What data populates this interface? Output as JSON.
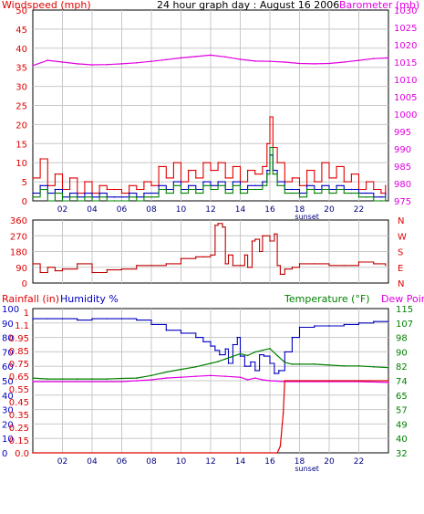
{
  "colors": {
    "red": "#e00000",
    "blue": "#0000c0",
    "green": "#008000",
    "magenta": "#e000e0",
    "darkred": "#c00000",
    "grid": "#c8c8c8"
  },
  "chart_data": [
    {
      "type": "line",
      "title": "24 hour graph day : August 16 2006",
      "ylabel": "Windspeed (mph)",
      "y2label": "Barometer (mb)",
      "ylim": [
        0,
        50
      ],
      "y2lim": [
        975,
        1030
      ],
      "yticks": [
        "50",
        "45",
        "40",
        "35",
        "30",
        "25",
        "20",
        "15",
        "10",
        "5",
        "0"
      ],
      "y2ticks": [
        "1030",
        "1025",
        "1020",
        "1015",
        "1010",
        "1005",
        "1000",
        "995",
        "990",
        "985",
        "980",
        "975"
      ],
      "xlim": [
        0,
        24
      ],
      "xticks": [
        "02",
        "04",
        "06",
        "08",
        "10",
        "12",
        "14",
        "16",
        "18",
        "20",
        "22"
      ],
      "xnote": "sunset",
      "series": [
        {
          "key": "gust",
          "color": "red",
          "axis": "y",
          "x": [
            0,
            0.5,
            1,
            1.5,
            2,
            2.5,
            3,
            3.5,
            4,
            4.5,
            5,
            5.5,
            6,
            6.5,
            7,
            7.5,
            8,
            8.5,
            9,
            9.5,
            10,
            10.5,
            11,
            11.5,
            12,
            12.5,
            13,
            13.5,
            14,
            14.5,
            15,
            15.5,
            15.8,
            16,
            16.2,
            16.5,
            17,
            17.5,
            18,
            18.5,
            19,
            19.5,
            20,
            20.5,
            21,
            21.5,
            22,
            22.5,
            23,
            23.5,
            23.8
          ],
          "y": [
            6,
            11,
            4,
            7,
            3,
            6,
            2,
            5,
            2,
            4,
            3,
            3,
            2,
            4,
            3,
            5,
            4,
            9,
            6,
            10,
            5,
            8,
            6,
            10,
            8,
            10,
            6,
            9,
            5,
            8,
            7,
            9,
            15,
            22,
            14,
            10,
            5,
            6,
            4,
            8,
            5,
            10,
            6,
            9,
            5,
            7,
            3,
            5,
            3,
            2,
            4
          ]
        },
        {
          "key": "avg",
          "color": "blue",
          "axis": "y",
          "x": [
            0,
            0.5,
            1,
            1.5,
            2,
            2.5,
            3,
            3.5,
            4,
            4.5,
            5,
            5.5,
            6,
            6.5,
            7,
            7.5,
            8,
            8.5,
            9,
            9.5,
            10,
            10.5,
            11,
            11.5,
            12,
            12.5,
            13,
            13.5,
            14,
            14.5,
            15,
            15.5,
            15.8,
            16,
            16.2,
            16.5,
            17,
            17.5,
            18,
            18.5,
            19,
            19.5,
            20,
            20.5,
            21,
            21.5,
            22,
            22.5,
            23,
            23.5,
            23.8
          ],
          "y": [
            2,
            4,
            2,
            3,
            1,
            2,
            1,
            2,
            1,
            2,
            1,
            1,
            1,
            2,
            1,
            2,
            2,
            4,
            3,
            5,
            3,
            4,
            3,
            5,
            4,
            5,
            3,
            5,
            3,
            4,
            4,
            5,
            8,
            12,
            8,
            5,
            3,
            3,
            2,
            4,
            3,
            4,
            3,
            4,
            3,
            3,
            2,
            2,
            1,
            1,
            2
          ]
        },
        {
          "key": "wind",
          "color": "green",
          "axis": "y",
          "x": [
            0,
            0.5,
            1,
            1.5,
            2,
            2.5,
            3,
            3.5,
            4,
            4.5,
            5,
            5.5,
            6,
            6.5,
            7,
            7.5,
            8,
            8.5,
            9,
            9.5,
            10,
            10.5,
            11,
            11.5,
            12,
            12.5,
            13,
            13.5,
            14,
            14.5,
            15,
            15.5,
            15.8,
            16,
            16.2,
            16.5,
            17,
            17.5,
            18,
            18.5,
            19,
            19.5,
            20,
            20.5,
            21,
            21.5,
            22,
            22.5,
            23,
            23.5,
            23.8
          ],
          "y": [
            1,
            3,
            0,
            2,
            0,
            1,
            0,
            1,
            0,
            1,
            0,
            0,
            0,
            1,
            0,
            1,
            1,
            3,
            2,
            4,
            2,
            3,
            2,
            4,
            3,
            4,
            2,
            4,
            2,
            3,
            3,
            4,
            7,
            14,
            7,
            4,
            2,
            2,
            1,
            3,
            2,
            3,
            2,
            3,
            2,
            2,
            1,
            1,
            0,
            0,
            1
          ]
        },
        {
          "key": "baro",
          "color": "magenta",
          "axis": "y2",
          "x": [
            0,
            1,
            2,
            3,
            4,
            5,
            6,
            7,
            8,
            9,
            10,
            11,
            12,
            13,
            14,
            15,
            16,
            17,
            18,
            19,
            20,
            21,
            22,
            23,
            24
          ],
          "y": [
            1014,
            1015.5,
            1015,
            1014.5,
            1014.2,
            1014.3,
            1014.5,
            1014.8,
            1015.2,
            1015.7,
            1016.2,
            1016.6,
            1017,
            1016.5,
            1015.8,
            1015.3,
            1015.2,
            1015,
            1014.6,
            1014.5,
            1014.6,
            1015,
            1015.5,
            1016,
            1016.2
          ]
        }
      ]
    },
    {
      "type": "line",
      "yticks": [
        "360",
        "270",
        "180",
        "90",
        "0"
      ],
      "ylim": [
        0,
        360
      ],
      "y2ticks": [
        "N",
        "W",
        "S",
        "E",
        "N"
      ],
      "xlim": [
        0,
        24
      ],
      "series": [
        {
          "key": "dir",
          "color": "darkred",
          "axis": "y",
          "x": [
            0,
            0.5,
            1,
            1.5,
            2,
            3,
            4,
            5,
            6,
            7,
            8,
            9,
            10,
            11,
            11.5,
            12,
            12.3,
            12.5,
            12.8,
            13,
            13.2,
            13.5,
            14,
            14.3,
            14.5,
            14.8,
            15,
            15.3,
            15.5,
            16,
            16.3,
            16.5,
            16.7,
            17,
            17.5,
            18,
            19,
            20,
            21,
            22,
            23,
            23.8
          ],
          "y": [
            110,
            60,
            90,
            70,
            80,
            110,
            60,
            75,
            80,
            100,
            100,
            110,
            140,
            150,
            150,
            160,
            330,
            340,
            320,
            110,
            160,
            100,
            100,
            160,
            90,
            240,
            250,
            180,
            270,
            240,
            280,
            100,
            50,
            80,
            90,
            110,
            110,
            100,
            100,
            120,
            110,
            100
          ]
        }
      ]
    },
    {
      "type": "line",
      "ylabel": "Rainfall (in)",
      "ylabel2": "Humidity %",
      "y2label": "Temperature (°F)",
      "y2label2": "Dew Point",
      "humidity_ticks": [
        "100",
        "90",
        "80",
        "70",
        "60",
        "50",
        "40",
        "30",
        "20",
        "10",
        "0"
      ],
      "rain_ticks": [
        "1",
        "1.1",
        "0.95",
        "0.85",
        "0.75",
        "0.65",
        "0.55",
        "0.45",
        "0.35",
        "0.25",
        "0.15",
        "0.0"
      ],
      "temp_ticks": [
        "115",
        "107",
        "98",
        "90",
        "82",
        "74",
        "65",
        "57",
        "49",
        "40",
        "32"
      ],
      "xticks": [
        "02",
        "04",
        "06",
        "08",
        "10",
        "12",
        "14",
        "16",
        "18",
        "20",
        "22"
      ],
      "xnote": "sunset",
      "xlim": [
        0,
        24
      ],
      "series": [
        {
          "key": "humidity",
          "color": "blue",
          "axis": "hum",
          "x": [
            0,
            1,
            2,
            3,
            4,
            5,
            6,
            7,
            8,
            9,
            10,
            11,
            11.5,
            12,
            12.3,
            12.6,
            13,
            13.2,
            13.5,
            13.8,
            14,
            14.3,
            14.7,
            15,
            15.3,
            15.6,
            16,
            16.3,
            16.6,
            17,
            17.5,
            18,
            19,
            20,
            21,
            22,
            23,
            24
          ],
          "y": [
            93,
            93,
            93,
            92,
            93,
            93,
            93,
            92,
            89,
            85,
            83,
            80,
            77,
            74,
            71,
            68,
            72,
            62,
            75,
            80,
            67,
            60,
            63,
            57,
            68,
            67,
            62,
            55,
            57,
            70,
            80,
            87,
            88,
            88,
            89,
            90,
            91,
            91
          ]
        },
        {
          "key": "temperature",
          "color": "green",
          "axis": "temp",
          "x": [
            0,
            1,
            2,
            3,
            4,
            5,
            6,
            7,
            8,
            9,
            10,
            11,
            12,
            12.5,
            13,
            13.5,
            14,
            14.5,
            15,
            15.5,
            16,
            16.5,
            17,
            17.5,
            18,
            19,
            20,
            21,
            22,
            23,
            24
          ],
          "y": [
            75,
            74.5,
            74.5,
            74.5,
            74.5,
            74.5,
            74.8,
            75,
            76.5,
            78.5,
            80,
            81.5,
            83.5,
            84.5,
            86,
            87.5,
            89,
            88,
            90,
            91,
            92,
            88,
            84,
            83,
            83,
            83,
            82.5,
            82,
            82,
            81.5,
            81
          ]
        },
        {
          "key": "dewpoint",
          "color": "magenta",
          "axis": "temp",
          "x": [
            0,
            2,
            4,
            6,
            7,
            8,
            9,
            10,
            11,
            12,
            13,
            14,
            14.5,
            15,
            15.5,
            16,
            17,
            18,
            19,
            20,
            22,
            24
          ],
          "y": [
            73,
            73,
            73,
            73,
            73.5,
            74,
            75,
            75.5,
            76,
            76.5,
            76,
            75.5,
            74,
            75,
            74,
            73.5,
            73,
            73,
            73,
            73,
            73,
            72.5
          ]
        },
        {
          "key": "rain",
          "color": "red",
          "axis": "rain",
          "x": [
            0,
            16.5,
            16.7,
            16.9,
            17,
            24
          ],
          "y": [
            0,
            0,
            0.05,
            0.3,
            0.55,
            0.55
          ]
        }
      ]
    }
  ]
}
